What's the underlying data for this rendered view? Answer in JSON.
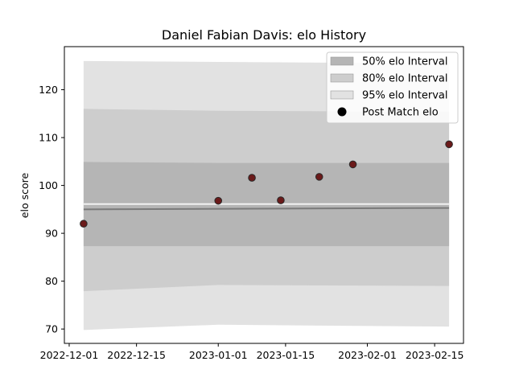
{
  "chart_data": {
    "type": "area",
    "title": "Daniel Fabian Davis: elo History",
    "xlabel": "",
    "ylabel": "elo score",
    "x_ticks": [
      "2022-12-01",
      "2022-12-15",
      "2023-01-01",
      "2023-01-15",
      "2023-02-01",
      "2023-02-15"
    ],
    "x_range": [
      "2022-11-30",
      "2023-02-21"
    ],
    "y_ticks": [
      70,
      80,
      90,
      100,
      110,
      120
    ],
    "ylim": [
      67,
      129
    ],
    "grid": false,
    "legend_position": "top-right",
    "intervals": [
      {
        "name": "95% elo Interval",
        "color": "#e2e2e2",
        "x": [
          "2022-12-04",
          "2023-01-01",
          "2023-02-18"
        ],
        "upper": [
          126.0,
          125.8,
          125.5
        ],
        "lower": [
          69.8,
          70.9,
          70.5
        ]
      },
      {
        "name": "80% elo Interval",
        "color": "#cdcdcd",
        "x": [
          "2022-12-04",
          "2023-01-01",
          "2023-02-18"
        ],
        "upper": [
          116.0,
          115.6,
          115.4
        ],
        "lower": [
          77.9,
          79.2,
          79.0
        ]
      },
      {
        "name": "50% elo Interval",
        "color": "#b5b5b5",
        "x": [
          "2022-12-04",
          "2023-01-01",
          "2023-02-18"
        ],
        "upper": [
          104.9,
          104.7,
          104.7
        ],
        "lower": [
          87.3,
          87.3,
          87.3
        ]
      }
    ],
    "center_lines": [
      {
        "color": "#f2f2f2",
        "x": [
          "2022-12-04",
          "2023-02-18"
        ],
        "y": [
          96.1,
          96.1
        ]
      },
      {
        "color": "#7a7a7a",
        "x": [
          "2022-12-04",
          "2023-02-18"
        ],
        "y": [
          95.0,
          95.3
        ]
      }
    ],
    "series": [
      {
        "name": "Post Match elo",
        "color": "#6b1a1a",
        "points": [
          {
            "x": "2022-12-04",
            "y": 92.0
          },
          {
            "x": "2023-01-01",
            "y": 96.8
          },
          {
            "x": "2023-01-08",
            "y": 101.6
          },
          {
            "x": "2023-01-14",
            "y": 96.9
          },
          {
            "x": "2023-01-22",
            "y": 101.8
          },
          {
            "x": "2023-01-29",
            "y": 104.4
          },
          {
            "x": "2023-02-18",
            "y": 108.6
          }
        ]
      }
    ],
    "legend": [
      {
        "label": "50% elo Interval",
        "kind": "patch",
        "color": "#b5b5b5"
      },
      {
        "label": "80% elo Interval",
        "kind": "patch",
        "color": "#cdcdcd"
      },
      {
        "label": "95% elo Interval",
        "kind": "patch",
        "color": "#e2e2e2"
      },
      {
        "label": "Post Match elo",
        "kind": "marker",
        "color": "#000000"
      }
    ]
  }
}
